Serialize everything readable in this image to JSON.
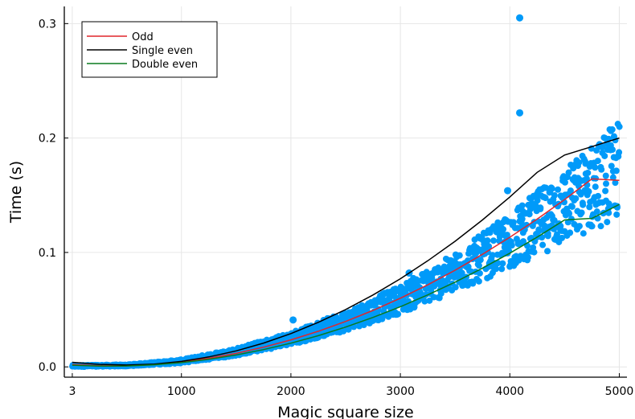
{
  "chart_data": {
    "type": "scatter",
    "title": "",
    "xlabel": "Magic square size",
    "ylabel": "Time (s)",
    "xlim": [
      -70,
      5070
    ],
    "ylim": [
      -0.009,
      0.315
    ],
    "xticks": [
      3,
      1000,
      2000,
      3000,
      4000,
      5000
    ],
    "xtick_labels": [
      "3",
      "1000",
      "2000",
      "3000",
      "4000",
      "5000"
    ],
    "yticks": [
      0.0,
      0.1,
      0.2,
      0.3
    ],
    "ytick_labels": [
      "0.0",
      "0.1",
      "0.2",
      "0.3"
    ],
    "grid": true,
    "legend_position": "top-left",
    "scatter_color": "#009af9",
    "scatter_band": {
      "x": [
        3,
        500,
        1000,
        1500,
        2000,
        2500,
        3000,
        3500,
        4000,
        4500,
        5000
      ],
      "low": [
        0.0,
        0.0005,
        0.0032,
        0.0095,
        0.019,
        0.031,
        0.046,
        0.064,
        0.085,
        0.106,
        0.128
      ],
      "high": [
        0.0015,
        0.002,
        0.0065,
        0.0165,
        0.0305,
        0.049,
        0.072,
        0.1,
        0.135,
        0.175,
        0.218
      ]
    },
    "outliers": [
      {
        "x": 4090,
        "y": 0.305
      },
      {
        "x": 4090,
        "y": 0.222
      },
      {
        "x": 3980,
        "y": 0.154
      },
      {
        "x": 2020,
        "y": 0.041
      },
      {
        "x": 3080,
        "y": 0.082
      }
    ],
    "series": [
      {
        "name": "Odd",
        "color": "#e0262b",
        "x": [
          3,
          250,
          500,
          750,
          1000,
          1250,
          1500,
          1750,
          2000,
          2250,
          2500,
          2750,
          3000,
          3250,
          3500,
          3750,
          4000,
          4250,
          4500,
          4750,
          5000
        ],
        "y": [
          0.002,
          0.0009,
          0.0009,
          0.002,
          0.0042,
          0.0075,
          0.0118,
          0.0172,
          0.0236,
          0.0311,
          0.0397,
          0.0493,
          0.06,
          0.0717,
          0.0845,
          0.0984,
          0.1133,
          0.1292,
          0.1462,
          0.1643,
          0.163
        ]
      },
      {
        "name": "Single even",
        "color": "#000000",
        "x": [
          3,
          250,
          500,
          750,
          1000,
          1250,
          1500,
          1750,
          2000,
          2250,
          2500,
          2750,
          3000,
          3250,
          3500,
          3750,
          4000,
          4250,
          4500,
          4750,
          5000
        ],
        "y": [
          0.004,
          0.0022,
          0.0016,
          0.0024,
          0.0048,
          0.0087,
          0.014,
          0.0208,
          0.0291,
          0.0389,
          0.0501,
          0.0628,
          0.077,
          0.0927,
          0.1098,
          0.1284,
          0.1485,
          0.17,
          0.1851,
          0.1925,
          0.2
        ]
      },
      {
        "name": "Double even",
        "color": "#0a7a1e",
        "x": [
          3,
          250,
          500,
          750,
          1000,
          1250,
          1500,
          1750,
          2000,
          2250,
          2500,
          2750,
          3000,
          3250,
          3500,
          3750,
          4000,
          4250,
          4500,
          4750,
          5000
        ],
        "y": [
          0.0015,
          0.0007,
          0.0008,
          0.0018,
          0.0037,
          0.0066,
          0.0104,
          0.0151,
          0.0207,
          0.0273,
          0.0348,
          0.0432,
          0.0526,
          0.0629,
          0.0741,
          0.0863,
          0.0994,
          0.1134,
          0.1284,
          0.1298,
          0.142
        ]
      }
    ]
  }
}
